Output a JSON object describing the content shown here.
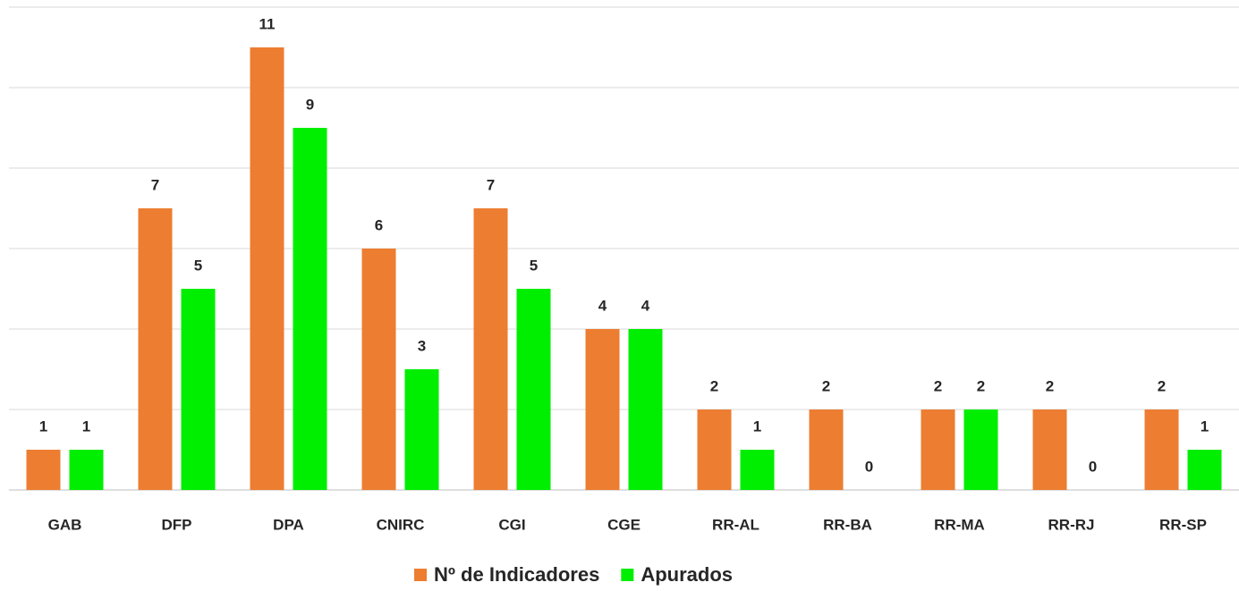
{
  "chart_data": {
    "type": "bar",
    "categories": [
      "GAB",
      "DFP",
      "DPA",
      "CNIRC",
      "CGI",
      "CGE",
      "RR-AL",
      "RR-BA",
      "RR-MA",
      "RR-RJ",
      "RR-SP"
    ],
    "series": [
      {
        "name": "Nº de Indicadores",
        "color": "#ed7d31",
        "values": [
          1,
          7,
          11,
          6,
          7,
          4,
          2,
          2,
          2,
          2,
          2
        ]
      },
      {
        "name": "Apurados",
        "color": "#00ee00",
        "values": [
          1,
          5,
          9,
          3,
          5,
          4,
          1,
          0,
          2,
          0,
          1
        ]
      }
    ],
    "ylim": [
      0,
      12
    ],
    "yticks": [
      0,
      2,
      4,
      6,
      8,
      10,
      12
    ],
    "grid": true,
    "legend": "bottom"
  }
}
